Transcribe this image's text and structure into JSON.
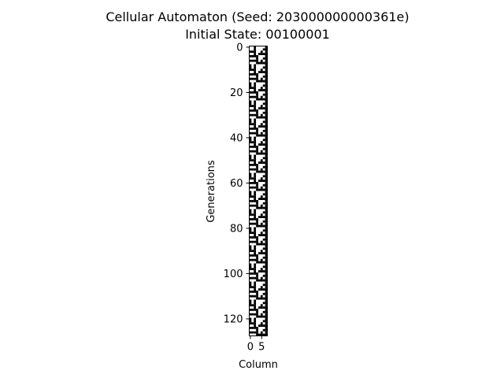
{
  "chart_data": {
    "type": "heatmap",
    "title": "Cellular Automaton (Seed: 203000000000361e)",
    "subtitle": "Initial State: 00100001",
    "xlabel": "Column",
    "ylabel": "Generations",
    "columns": 8,
    "generations": 128,
    "initial_state": "00100001",
    "x_ticks": [
      0,
      5
    ],
    "y_ticks": [
      0,
      20,
      40,
      60,
      80,
      100,
      120
    ],
    "colormap": {
      "on": "#000000",
      "off": "#ffffff"
    },
    "rows": [
      "00100001",
      "00100011",
      "11100101",
      "00101111",
      "11110001",
      "00010011",
      "11110101",
      "00011111",
      "10100001",
      "10100011",
      "11100101",
      "00101111",
      "11110001",
      "00010011",
      "11110101",
      "00011111",
      "10100001",
      "10100011",
      "11100101",
      "00101111",
      "11110001",
      "00010011",
      "11110101",
      "00011111",
      "10100001",
      "10100011",
      "11100101",
      "00101111",
      "11110001",
      "00010011",
      "11110101",
      "00011111",
      "10100001",
      "10100011",
      "11100101",
      "00101111",
      "11110001",
      "00010011",
      "11110101",
      "00011111",
      "10100001",
      "10100011",
      "11100101",
      "00101111",
      "11110001",
      "00010011",
      "11110101",
      "00011111",
      "10100001",
      "10100011",
      "11100101",
      "00101111",
      "11110001",
      "00010011",
      "11110101",
      "00011111",
      "10100001",
      "10100011",
      "11100101",
      "00101111",
      "11110001",
      "00010011",
      "11110101",
      "00011111",
      "10100001",
      "10100011",
      "11100101",
      "00101111",
      "11110001",
      "00010011",
      "11110101",
      "00011111",
      "10100001",
      "10100011",
      "11100101",
      "00101111",
      "11110001",
      "00010011",
      "11110101",
      "00011111",
      "10100001",
      "10100011",
      "11100101",
      "00101111",
      "11110001",
      "00010011",
      "11110101",
      "00011111",
      "10100001",
      "10100011",
      "11100101",
      "00101111",
      "11110001",
      "00010011",
      "11110101",
      "00011111",
      "10100001",
      "10100011",
      "11100101",
      "00101111",
      "11110001",
      "00010011",
      "11110101",
      "00011111",
      "10100001",
      "10100011",
      "11100101",
      "00101111",
      "11110001",
      "00010011",
      "11110101",
      "00011111",
      "10100001",
      "10100011",
      "11100101",
      "00101111",
      "11110001",
      "00010011",
      "11110101",
      "00011111",
      "10100001",
      "10100011",
      "11100101",
      "00101111",
      "11110001",
      "00010011",
      "11110101",
      "00011111"
    ]
  }
}
